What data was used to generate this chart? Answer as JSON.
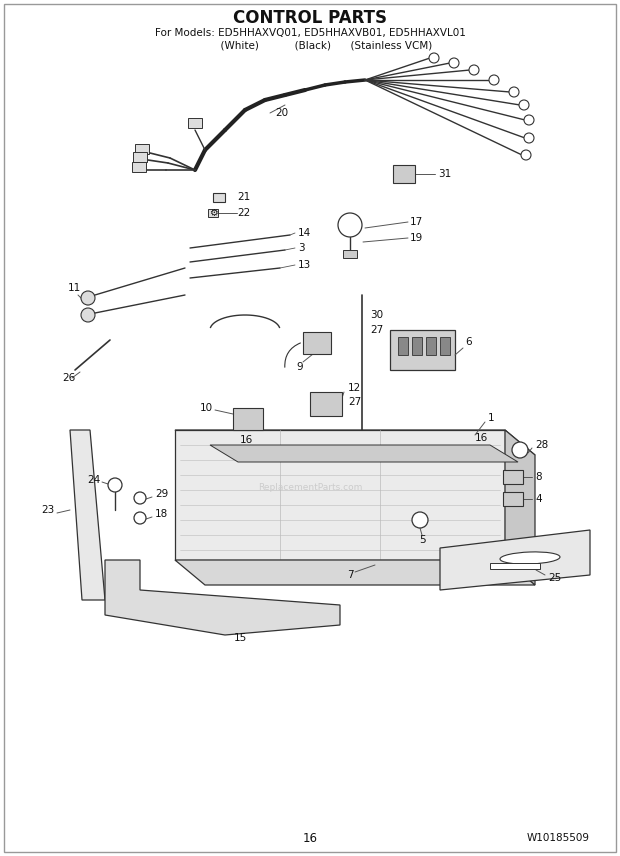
{
  "title": "CONTROL PARTS",
  "subtitle1": "For Models: ED5HHAXVQ01, ED5HHAXVB01, ED5HHAXVL01",
  "subtitle2": "          (White)           (Black)      (Stainless VCM)",
  "page_num": "16",
  "doc_num": "W10185509",
  "bg_color": "#ffffff",
  "lc": "#333333",
  "tc": "#111111",
  "watermark": "ReplacementParts.com",
  "fig_w": 6.2,
  "fig_h": 8.56,
  "dpi": 100
}
